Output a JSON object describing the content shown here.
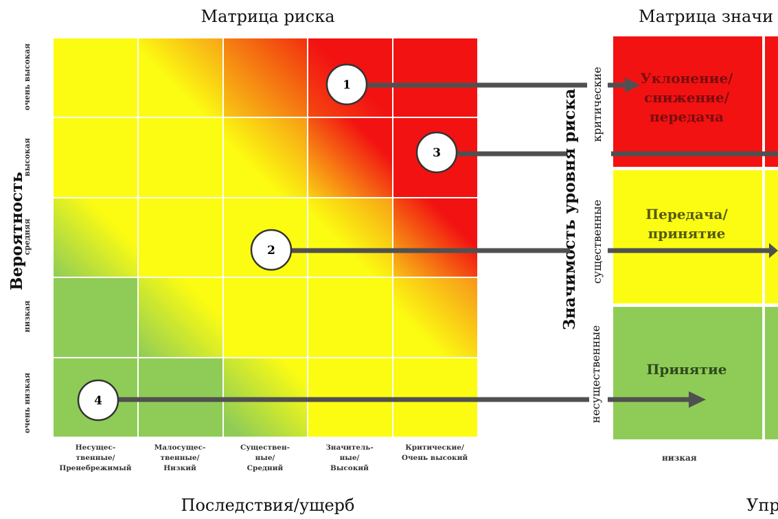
{
  "risk_matrix": {
    "title": "Матрица риска",
    "y_axis_title": "Вероятность",
    "x_axis_title": "Последствия/ущерб",
    "probability_levels": [
      "очень высокая",
      "высокая",
      "средняя",
      "низкая",
      "очень низкая"
    ],
    "consequence_levels": [
      "Несущес-\nтвенные/\nПренебрежимый",
      "Малосущес-\nтвенные/\nНизкий",
      "Существен-\nные/\nСредний",
      "Значитель-\nные/\nВысокий",
      "Критические/\nОчень высокий"
    ],
    "colors": {
      "red": "#f21212",
      "orange": "#f78a14",
      "yellow": "#fcfc12",
      "green": "#8fcc57"
    }
  },
  "significance_matrix": {
    "title": "Матрица значи",
    "axis_title": "Значимость уровня риска",
    "levels": [
      "критические",
      "существенные",
      "несущественные"
    ],
    "actions": [
      "Уклонение/\nснижение/\nпередача",
      "Передача/\nпринятие",
      "Принятие"
    ],
    "x_label": "низкая",
    "bottom_label": "Упр"
  },
  "markers": [
    "1",
    "2",
    "3",
    "4"
  ]
}
